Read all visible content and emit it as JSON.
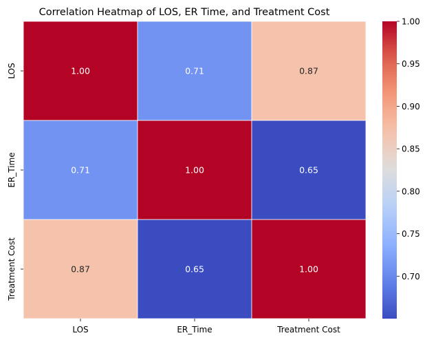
{
  "chart_data": {
    "type": "heatmap",
    "title": "Correlation Heatmap of LOS, ER Time, and Treatment Cost",
    "xlabel": "",
    "ylabel": "",
    "x_categories": [
      "LOS",
      "ER_Time",
      "Treatment Cost"
    ],
    "y_categories": [
      "LOS",
      "ER_Time",
      "Treatment Cost"
    ],
    "values": [
      [
        1.0,
        0.71,
        0.87
      ],
      [
        0.71,
        1.0,
        0.65
      ],
      [
        0.87,
        0.65,
        1.0
      ]
    ],
    "annotations": [
      [
        "1.00",
        "0.71",
        "0.87"
      ],
      [
        "0.71",
        "1.00",
        "0.65"
      ],
      [
        "0.87",
        "0.65",
        "1.00"
      ]
    ],
    "colormap": "coolwarm",
    "vmin": 0.65,
    "vmax": 1.0,
    "colorbar_ticks": [
      "0.70",
      "0.75",
      "0.80",
      "0.85",
      "0.90",
      "0.95",
      "1.00"
    ],
    "cell_border_color": "#ffffff"
  }
}
